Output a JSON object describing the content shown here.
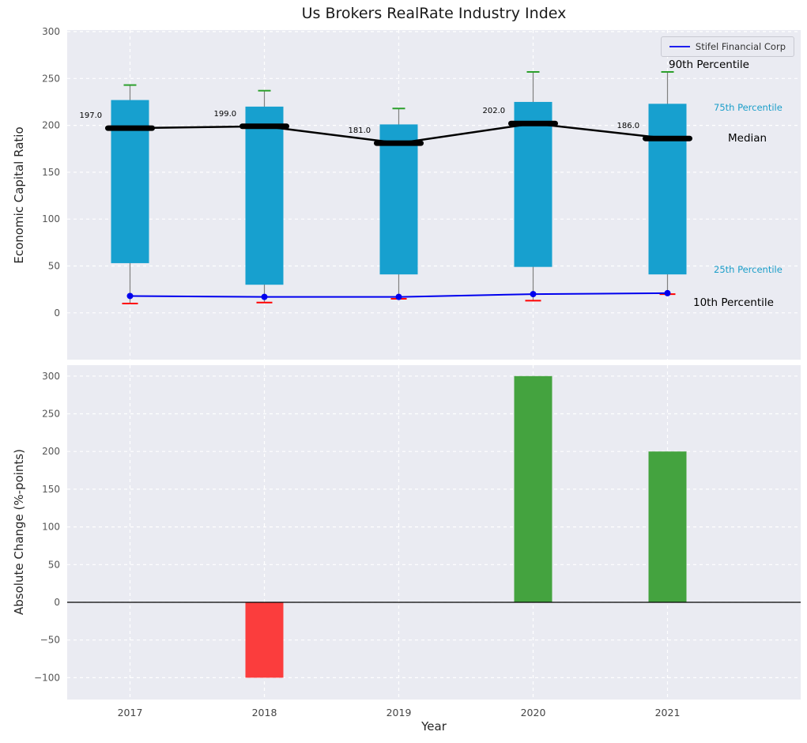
{
  "figure": {
    "title": "Us Brokers RealRate Industry Index",
    "legend": {
      "label": "Stifel Financial Corp",
      "color": "#0000ee"
    },
    "annotations": {
      "p90": "90th Percentile",
      "p75": "75th Percentile",
      "median": "Median",
      "p25": "25th Percentile",
      "p10": "10th Percentile"
    },
    "colors": {
      "box": "#17a0cf",
      "percentile_text": "#1b9ec9",
      "cap_high": "#2ca02c",
      "cap_low": "#ff0000",
      "median": "#000000",
      "stifel": "#0000ee",
      "bar_positive": "#44a33f",
      "bar_negative": "#fb3d3d",
      "whisker": "#808080"
    }
  },
  "chart_data": [
    {
      "type": "box-whisker-with-lines",
      "title": "Us Brokers RealRate Industry Index",
      "ylabel": "Economic Capital Ratio",
      "categories": [
        "2017",
        "2018",
        "2019",
        "2020",
        "2021"
      ],
      "yticks": [
        0,
        50,
        100,
        150,
        200,
        250,
        300
      ],
      "ylim": [
        -50,
        302
      ],
      "grid": true,
      "legend_position": "upper right",
      "series": [
        {
          "name": "90th Percentile",
          "values": [
            243,
            237,
            218,
            257,
            257
          ]
        },
        {
          "name": "75th Percentile",
          "values": [
            227,
            220,
            201,
            225,
            223
          ]
        },
        {
          "name": "Median",
          "values": [
            197,
            199,
            181,
            202,
            186
          ]
        },
        {
          "name": "25th Percentile",
          "values": [
            53,
            30,
            41,
            49,
            41
          ]
        },
        {
          "name": "10th Percentile",
          "values": [
            10,
            11,
            15,
            13,
            20
          ]
        },
        {
          "name": "Stifel Financial Corp",
          "values": [
            18,
            17,
            17,
            20,
            21
          ]
        }
      ],
      "median_labels": [
        "197.0",
        "199.0",
        "181.0",
        "202.0",
        "186.0"
      ]
    },
    {
      "type": "bar",
      "ylabel": "Absolute Change (%-points)",
      "xlabel": "Year",
      "categories": [
        "2017",
        "2018",
        "2019",
        "2020",
        "2021"
      ],
      "values": [
        0,
        -100,
        0,
        300,
        200
      ],
      "yticks": [
        -100,
        -50,
        0,
        50,
        100,
        150,
        200,
        250,
        300
      ],
      "ylim": [
        -128,
        318
      ],
      "grid": true
    }
  ]
}
